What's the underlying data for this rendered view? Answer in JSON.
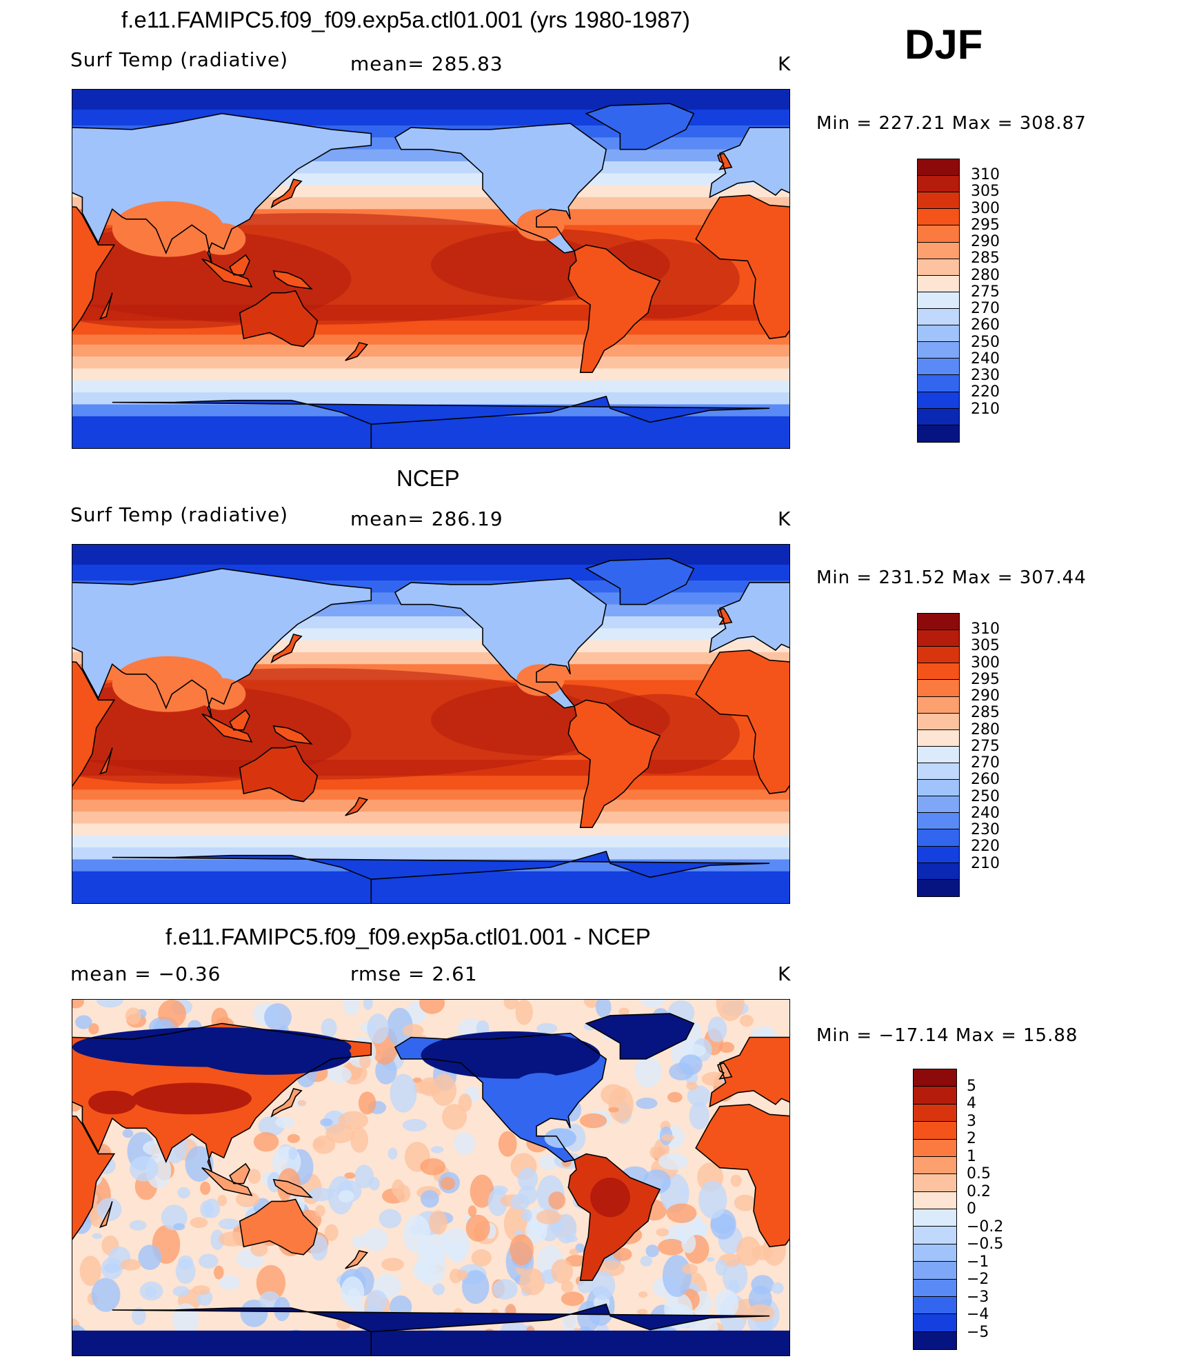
{
  "season": "DJF",
  "panels": [
    {
      "title": "f.e11.FAMIPC5.f09_f09.exp5a.ctl01.001 (yrs 1980-1987)",
      "left_label": "Surf Temp (radiative)",
      "mid_label": "mean= 285.83",
      "units": "K",
      "minmax": "Min = 227.21 Max = 308.87",
      "kind": "abs"
    },
    {
      "title": "NCEP",
      "left_label": "Surf Temp (radiative)",
      "mid_label": "mean= 286.19",
      "units": "K",
      "minmax": "Min = 231.52 Max = 307.44",
      "kind": "abs"
    },
    {
      "title": "f.e11.FAMIPC5.f09_f09.exp5a.ctl01.001 - NCEP",
      "left_label": "mean =   −0.36",
      "mid_label": "rmse =   2.61",
      "units": "K",
      "minmax": "Min = −17.14 Max =  15.88",
      "kind": "diff"
    }
  ],
  "colorbar_abs": {
    "labels": [
      "310",
      "305",
      "300",
      "295",
      "290",
      "285",
      "280",
      "275",
      "270",
      "260",
      "250",
      "240",
      "230",
      "220",
      "210"
    ],
    "colors": [
      "#8c0a0a",
      "#b51c0c",
      "#d8350f",
      "#f45419",
      "#fb7a40",
      "#fca070",
      "#fdc3a0",
      "#fee4d2",
      "#dcebfb",
      "#c0d8fb",
      "#a0c3fb",
      "#7ea8f7",
      "#5a8af5",
      "#3266ee",
      "#1340df",
      "#0a28b4",
      "#051480"
    ]
  },
  "colorbar_diff": {
    "labels": [
      "5",
      "4",
      "3",
      "2",
      "1",
      "0.5",
      "0.2",
      "0",
      "−0.2",
      "−0.5",
      "−1",
      "−2",
      "−3",
      "−4",
      "−5"
    ],
    "colors": [
      "#8c0a0a",
      "#b51c0c",
      "#d8350f",
      "#f45419",
      "#fb7a40",
      "#fca070",
      "#fdc3a0",
      "#fee4d2",
      "#dcebfb",
      "#c0d8fb",
      "#a0c3fb",
      "#7ea8f7",
      "#5a8af5",
      "#3266ee",
      "#1340df",
      "#051480"
    ]
  }
}
